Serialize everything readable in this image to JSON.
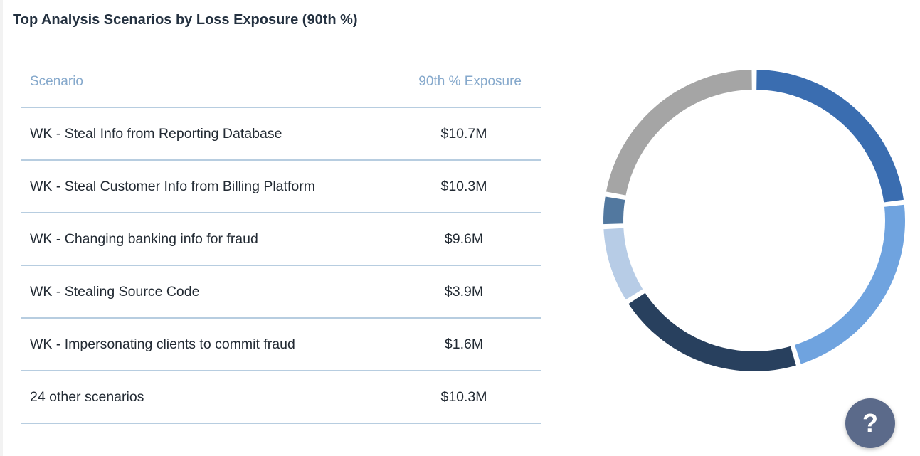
{
  "title": "Top Analysis Scenarios by Loss Exposure (90th %)",
  "table": {
    "headers": {
      "scenario": "Scenario",
      "exposure": "90th % Exposure"
    },
    "rows": [
      {
        "scenario": "WK - Steal Info from Reporting Database",
        "value": "$10.7M"
      },
      {
        "scenario": "WK - Steal Customer Info from Billing Platform",
        "value": "$10.3M"
      },
      {
        "scenario": "WK - Changing banking info for fraud",
        "value": "$9.6M"
      },
      {
        "scenario": "WK - Stealing Source Code",
        "value": "$3.9M"
      },
      {
        "scenario": "WK - Impersonating clients to commit fraud",
        "value": "$1.6M"
      },
      {
        "scenario": "24 other scenarios",
        "value": "$10.3M"
      }
    ]
  },
  "chart_data": {
    "type": "pie",
    "title": "Top Analysis Scenarios by Loss Exposure (90th %)",
    "categories": [
      "WK - Steal Info from Reporting Database",
      "WK - Steal Customer Info from Billing Platform",
      "WK - Changing banking info for fraud",
      "WK - Stealing Source Code",
      "WK - Impersonating clients to commit fraud",
      "24 other scenarios"
    ],
    "values": [
      10.7,
      10.3,
      9.6,
      3.9,
      1.6,
      10.3
    ],
    "unit": "$M",
    "colors": [
      "#3a6db0",
      "#6fa3df",
      "#28405e",
      "#b7cce6",
      "#52789f",
      "#a5a5a5"
    ],
    "donut": true,
    "legend": "table-left"
  },
  "help": {
    "icon": "question-icon",
    "label": "?"
  }
}
